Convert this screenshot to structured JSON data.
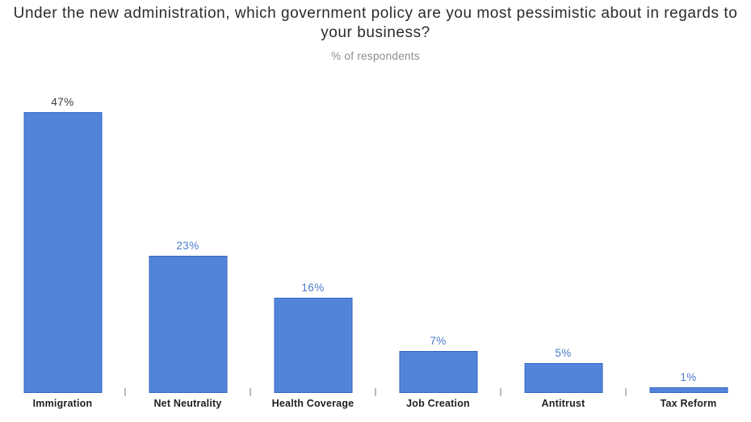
{
  "title": "Under the new administration, which government policy are you most pessimistic about in regards to your business?",
  "subtitle": "% of respondents",
  "colors": {
    "bar_fill": "#5285DA",
    "bar_border": "#3565C4",
    "value_label_blue": "#4A7CCB",
    "value_label_dark": "#3D3D3D",
    "title_color": "#2B2B2B",
    "subtitle_color": "#8C8C8C",
    "tick_color": "#BBBBBB",
    "category_color": "#1F1F1F"
  },
  "chart_data": {
    "type": "bar",
    "title": "Under the new administration, which government policy are you most pessimistic about in regards to your business?",
    "subtitle": "% of respondents",
    "categories": [
      "Immigration",
      "Net Neutrality",
      "Health Coverage",
      "Job Creation",
      "Antitrust",
      "Tax Reform"
    ],
    "values": [
      47,
      23,
      16,
      7,
      5,
      1
    ],
    "value_labels": [
      "47%",
      "23%",
      "16%",
      "7%",
      "5%",
      "1%"
    ],
    "value_label_styles": [
      "dark",
      "blue",
      "blue",
      "blue",
      "blue",
      "blue"
    ],
    "xlabel": "",
    "ylabel": "% of respondents",
    "ylim": [
      0,
      50
    ],
    "grid": false,
    "legend": false,
    "value_axis_labels_visible": false
  }
}
